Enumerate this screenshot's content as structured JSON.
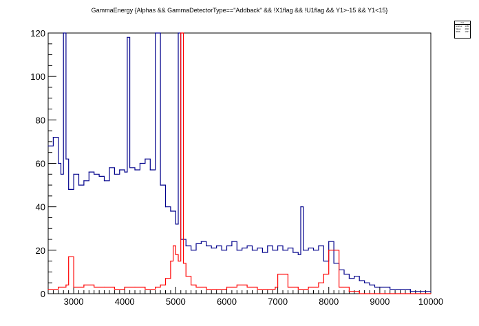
{
  "chart_data": {
    "type": "line",
    "title": "GammaEnergy {Alphas && GammaDetectorType==\"Addback\" &&  !X1flag && !U1flag && Y1>-15 && Y1<15}",
    "xlabel": "",
    "ylabel": "",
    "xlim": [
      2500,
      10000
    ],
    "ylim": [
      0,
      120
    ],
    "x_ticks": [
      3000,
      4000,
      5000,
      6000,
      7000,
      8000,
      9000,
      10000
    ],
    "y_ticks": [
      0,
      20,
      40,
      60,
      80,
      100,
      120
    ],
    "grid": false,
    "legend": "none",
    "series": [
      {
        "color": "#00008b",
        "x": [
          2500,
          2600,
          2700,
          2750,
          2800,
          2850,
          2900,
          3000,
          3100,
          3200,
          3300,
          3400,
          3500,
          3600,
          3700,
          3800,
          3900,
          4000,
          4050,
          4100,
          4200,
          4300,
          4400,
          4500,
          4600,
          4700,
          4800,
          4900,
          5000,
          5050,
          5100,
          5200,
          5300,
          5400,
          5500,
          5600,
          5700,
          5800,
          5900,
          6000,
          6100,
          6200,
          6300,
          6400,
          6500,
          6600,
          6700,
          6800,
          6900,
          7000,
          7100,
          7200,
          7300,
          7400,
          7450,
          7500,
          7600,
          7700,
          7800,
          7900,
          8000,
          8100,
          8200,
          8300,
          8400,
          8500,
          8600,
          8700,
          8800,
          8900,
          9000,
          9200,
          9400,
          9600,
          9800,
          10000
        ],
        "values": [
          68,
          72,
          60,
          55,
          120,
          62,
          48,
          55,
          50,
          52,
          56,
          55,
          54,
          52,
          58,
          55,
          57,
          56,
          118,
          58,
          57,
          60,
          62,
          57,
          120,
          50,
          40,
          38,
          32,
          120,
          25,
          22,
          20,
          23,
          24,
          22,
          21,
          22,
          20,
          22,
          24,
          20,
          21,
          22,
          20,
          21,
          19,
          22,
          20,
          22,
          20,
          21,
          19,
          18,
          40,
          20,
          21,
          20,
          22,
          15,
          24,
          14,
          11,
          9,
          7,
          8,
          6,
          5,
          4,
          3,
          3,
          2,
          2,
          1,
          1,
          1
        ]
      },
      {
        "color": "#ff0000",
        "x": [
          2500,
          2700,
          2850,
          2900,
          3000,
          3200,
          3400,
          3600,
          3800,
          4000,
          4200,
          4400,
          4600,
          4700,
          4800,
          4900,
          4950,
          5000,
          5050,
          5100,
          5150,
          5200,
          5300,
          5400,
          5600,
          5800,
          6000,
          6200,
          6400,
          6600,
          6800,
          6950,
          7000,
          7200,
          7400,
          7600,
          7800,
          7900,
          8000,
          8200,
          8400,
          8600,
          8800,
          9000,
          9500,
          10000
        ],
        "values": [
          2,
          3,
          4,
          17,
          3,
          4,
          3,
          3,
          2,
          3,
          3,
          2,
          3,
          4,
          7,
          15,
          22,
          18,
          15,
          120,
          14,
          8,
          4,
          3,
          2,
          2,
          3,
          4,
          3,
          2,
          2,
          3,
          9,
          3,
          2,
          3,
          5,
          9,
          20,
          3,
          1,
          0,
          0,
          0,
          0,
          0
        ]
      }
    ]
  },
  "stats_box": {
    "header": "hist",
    "rows": [
      {
        "label": "Entries",
        "value": "1456"
      },
      {
        "label": "Mean",
        "value": "4916"
      },
      {
        "label": "RMS",
        "value": "1637"
      }
    ]
  }
}
